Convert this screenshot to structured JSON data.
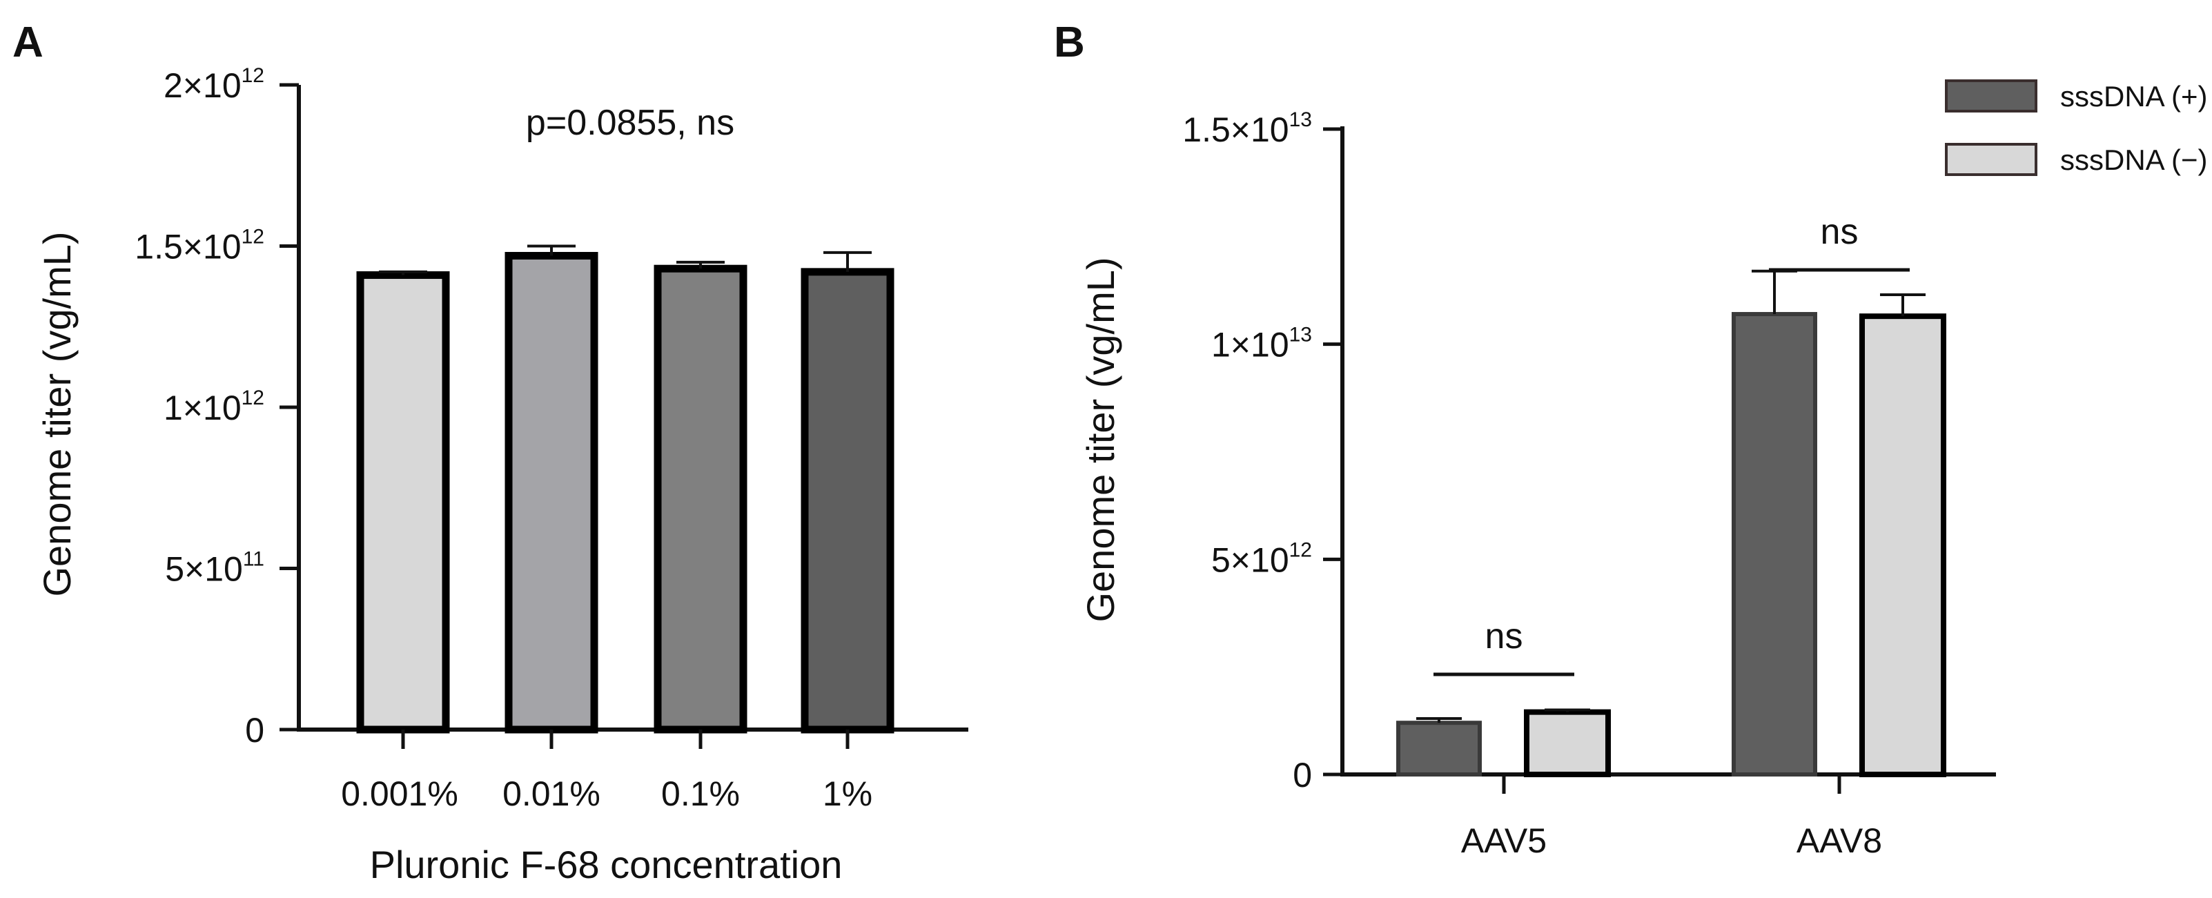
{
  "chart_data": [
    {
      "panel": "A",
      "type": "bar",
      "title": "",
      "categories": [
        "0.001%",
        "0.01%",
        "0.1%",
        "1%"
      ],
      "values": [
        1410000000000.0,
        1470000000000.0,
        1430000000000.0,
        1420000000000.0
      ],
      "errors": [
        10000000000.0,
        30000000000.0,
        20000000000.0,
        60000000000.0
      ],
      "colors": [
        "#d8d8d8",
        "#a4a4a8",
        "#808080",
        "#5f5f5f"
      ],
      "xlabel": "Pluronic F-68 concentration",
      "ylabel": "Genome titer (vg/mL)",
      "ylim": [
        0,
        2000000000000.0
      ],
      "yticks": [
        {
          "value": 0,
          "base": "0",
          "exp": ""
        },
        {
          "value": 500000000000.0,
          "base": "5×10",
          "exp": "11"
        },
        {
          "value": 1000000000000.0,
          "base": "1×10",
          "exp": "12"
        },
        {
          "value": 1500000000000.0,
          "base": "1.5×10",
          "exp": "12"
        },
        {
          "value": 2000000000000.0,
          "base": "2×10",
          "exp": "12"
        }
      ],
      "annotation": "p=0.0855, ns",
      "grid": false
    },
    {
      "panel": "B",
      "type": "bar",
      "title": "",
      "categories": [
        "AAV5",
        "AAV8"
      ],
      "series": [
        {
          "name": "sssDNA (+)",
          "color": "#5f5f5f",
          "values": [
            1200000000000.0,
            10700000000000.0
          ],
          "errors": [
            100000000000.0,
            1000000000000.0
          ]
        },
        {
          "name": "sssDNA (−)",
          "color": "#d8d8d8",
          "values": [
            1450000000000.0,
            10650000000000.0
          ],
          "errors": [
            50000000000.0,
            500000000000.0
          ]
        }
      ],
      "xlabel": "",
      "ylabel": "Genome titer (vg/mL)",
      "ylim": [
        0,
        15000000000000.0
      ],
      "yticks": [
        {
          "value": 0,
          "base": "0",
          "exp": ""
        },
        {
          "value": 5000000000000.0,
          "base": "5×10",
          "exp": "12"
        },
        {
          "value": 10000000000000.0,
          "base": "1×10",
          "exp": "13"
        },
        {
          "value": 15000000000000.0,
          "base": "1.5×10",
          "exp": "13"
        }
      ],
      "significance": [
        {
          "category": "AAV5",
          "label": "ns"
        },
        {
          "category": "AAV8",
          "label": "ns"
        }
      ],
      "legend_position": "top-right",
      "grid": false
    }
  ]
}
